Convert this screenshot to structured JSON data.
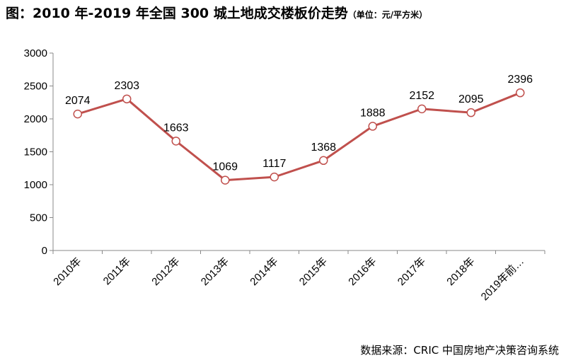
{
  "title": {
    "main": "图：2010 年-2019 年全国 300 城土地成交楼板价走势",
    "unit": "（单位：元/平方米）"
  },
  "source": "数据来源：CRIC 中国房地产决策咨询系统",
  "chart_data": {
    "type": "line",
    "categories": [
      "2010年",
      "2011年",
      "2012年",
      "2013年",
      "2014年",
      "2015年",
      "2016年",
      "2017年",
      "2018年",
      "2019年前…"
    ],
    "values": [
      2074,
      2303,
      1663,
      1069,
      1117,
      1368,
      1888,
      2152,
      2095,
      2396
    ],
    "data_labels": [
      "2074",
      "2303",
      "1663",
      "1069",
      "1117",
      "1368",
      "1888",
      "2152",
      "2095",
      "2396"
    ],
    "y_ticks": [
      "0",
      "500",
      "1000",
      "1500",
      "2000",
      "2500",
      "3000"
    ],
    "ylim": [
      0,
      3000
    ],
    "grid": false,
    "legend": "none",
    "colors": {
      "line": "#c0504d",
      "marker_fill": "#ffffff",
      "axis": "#888888"
    }
  }
}
